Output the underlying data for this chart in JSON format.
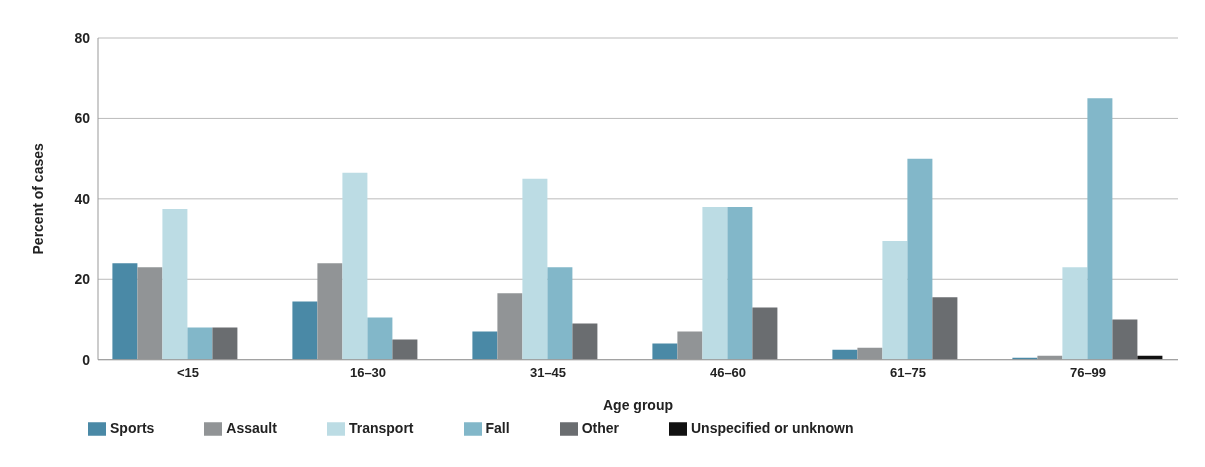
{
  "chart_data": {
    "type": "bar",
    "xlabel": "Age group",
    "ylabel": "Percent of cases",
    "categories": [
      "<15",
      "16–30",
      "31–45",
      "46–60",
      "61–75",
      "76–99"
    ],
    "series": [
      {
        "name": "Sports",
        "color": "#4a89a6",
        "values": [
          24,
          14.5,
          7,
          4,
          2.5,
          0.5
        ]
      },
      {
        "name": "Assault",
        "color": "#919496",
        "values": [
          23,
          24,
          16.5,
          7,
          3,
          1
        ]
      },
      {
        "name": "Transport",
        "color": "#bcdce4",
        "values": [
          37.5,
          46.5,
          45,
          38,
          29.5,
          23
        ]
      },
      {
        "name": "Fall",
        "color": "#82b7c9",
        "values": [
          8,
          10.5,
          23,
          38,
          50,
          65
        ]
      },
      {
        "name": "Other",
        "color": "#6a6d70",
        "values": [
          8,
          5,
          9,
          13,
          15.5,
          10
        ]
      },
      {
        "name": "Unspecified or unknown",
        "color": "#111111",
        "values": [
          0,
          null,
          null,
          null,
          null,
          1
        ]
      }
    ],
    "ylim": [
      0,
      80
    ],
    "yticks": [
      0,
      20,
      40,
      60,
      80
    ],
    "grid": "y",
    "legend": "bottom"
  }
}
